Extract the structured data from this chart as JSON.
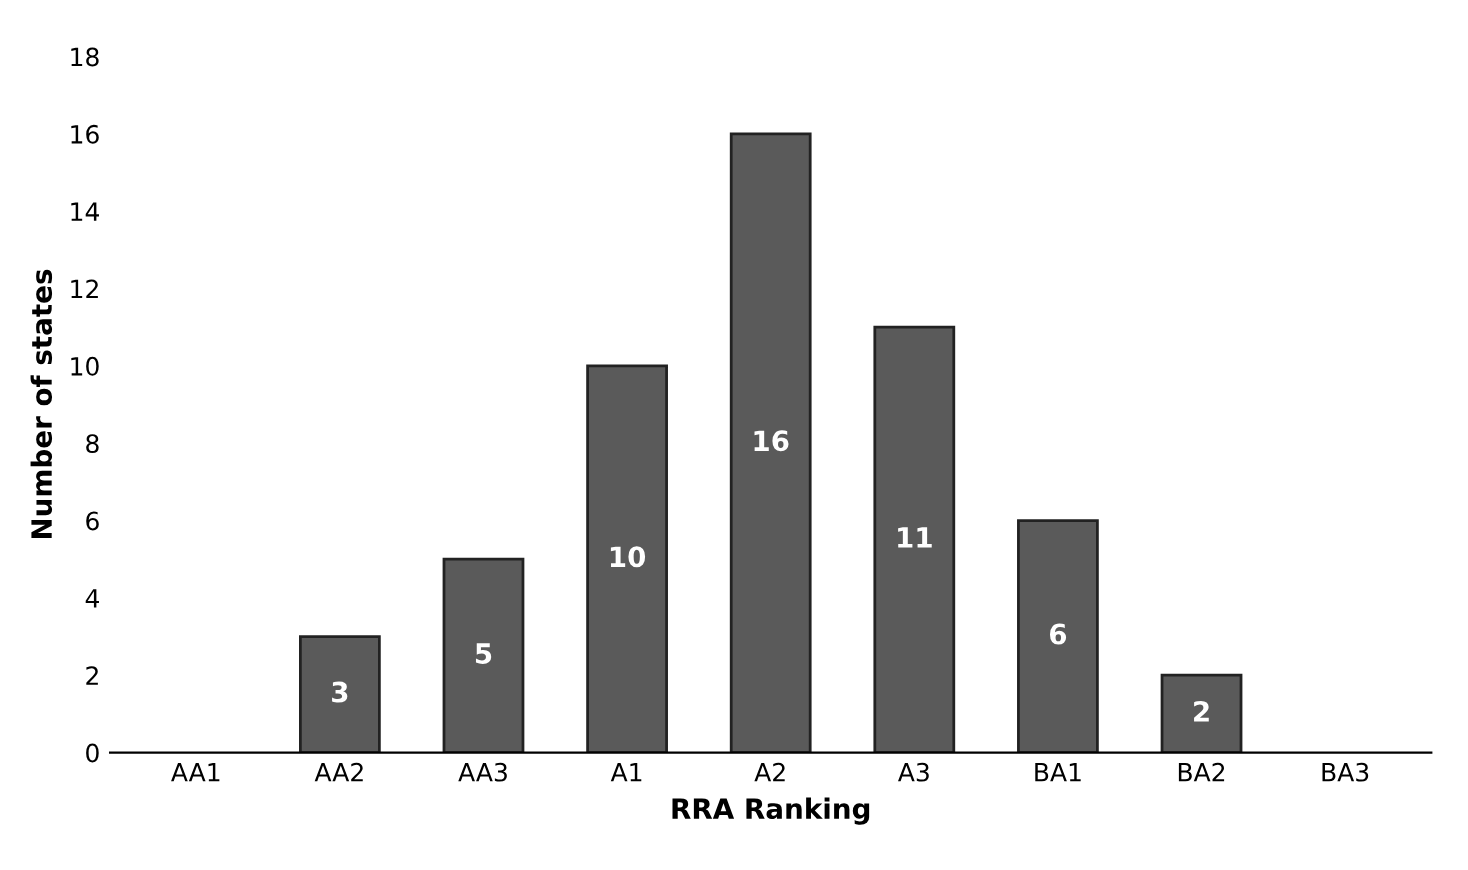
{
  "chart_data": {
    "type": "bar",
    "xlabel": "RRA Ranking",
    "ylabel": "Number of states",
    "categories": [
      "AA1",
      "AA2",
      "AA3",
      "A1",
      "A2",
      "A3",
      "BA1",
      "BA2",
      "BA3"
    ],
    "values": [
      0,
      3,
      5,
      10,
      16,
      11,
      6,
      2,
      0
    ],
    "value_labels": [
      null,
      "3",
      "5",
      "10",
      "16",
      "11",
      "6",
      "2",
      null
    ],
    "color": "#5a5a5a",
    "ylim": [
      0,
      18
    ],
    "yticks": [
      0,
      2,
      4,
      6,
      8,
      10,
      12,
      14,
      16,
      18
    ],
    "grid": false,
    "legend": false
  }
}
